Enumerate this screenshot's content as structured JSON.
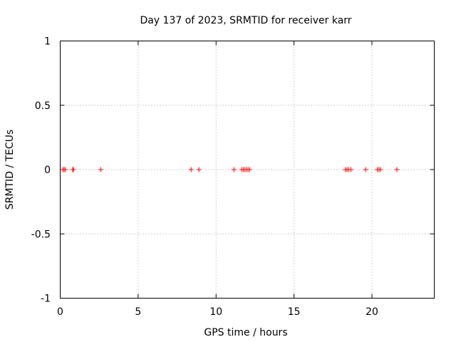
{
  "chart_data": {
    "type": "scatter",
    "title": "Day 137 of 2023, SRMTID for receiver karr",
    "xlabel": "GPS time / hours",
    "ylabel": "SRMTID / TECUs",
    "xlim": [
      0,
      24
    ],
    "ylim": [
      -1,
      1
    ],
    "grid": true,
    "marker": "plus",
    "color": "#ff0000",
    "x_ticks": [
      0,
      5,
      10,
      15,
      20
    ],
    "x_tick_labels": [
      "0",
      "5",
      "10",
      "15",
      "20"
    ],
    "y_ticks": [
      1,
      0.5,
      0,
      -0.5,
      -1
    ],
    "y_tick_labels": [
      "1",
      "0.5",
      "0",
      "-0.5",
      "-1"
    ],
    "series": [
      {
        "name": "SRMTID",
        "x": [
          0.17,
          0.25,
          0.33,
          0.8,
          0.85,
          2.6,
          8.4,
          8.9,
          11.15,
          11.65,
          11.75,
          11.85,
          11.95,
          12.05,
          12.15,
          18.3,
          18.4,
          18.5,
          18.65,
          19.6,
          20.35,
          20.45,
          20.55,
          21.6
        ],
        "y": [
          0,
          0,
          0,
          0,
          0,
          0,
          0,
          0,
          0,
          0,
          0,
          0,
          0,
          0,
          0,
          0,
          0,
          0,
          0,
          0,
          0,
          0,
          0,
          0
        ]
      }
    ]
  }
}
